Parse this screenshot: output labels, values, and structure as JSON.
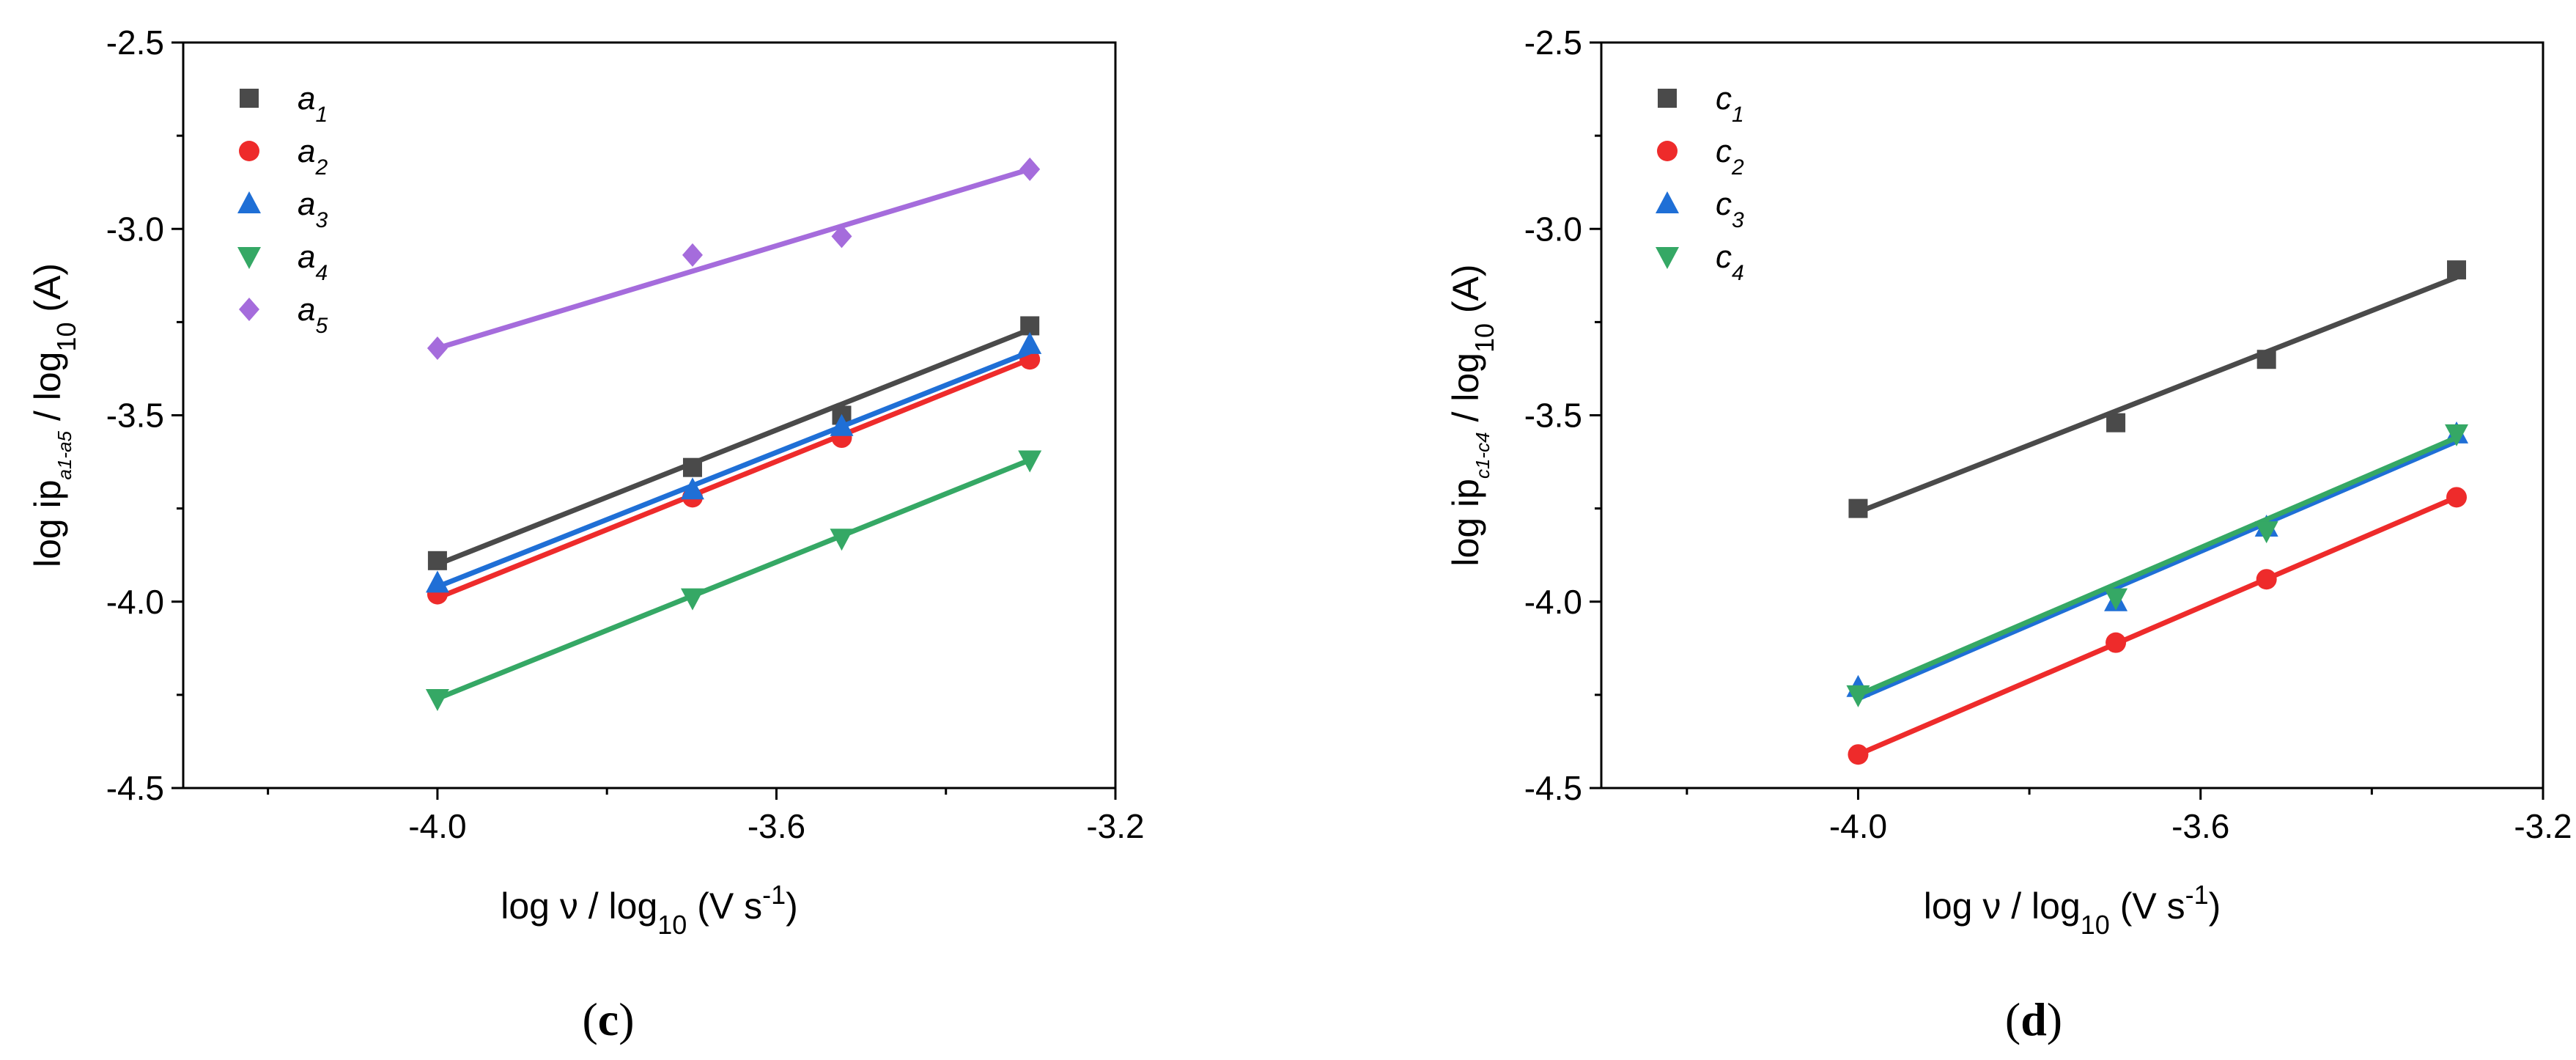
{
  "colors": {
    "s1": "#4a4a4a",
    "s2": "#ee2b2b",
    "s3": "#1f6fd6",
    "s4": "#35a865",
    "s5": "#a56cdc"
  },
  "chart_data": [
    {
      "panel": "c",
      "panel_label": {
        "open": "(",
        "letter": "c",
        "close": ")"
      },
      "type": "scatter",
      "xlim": [
        -4.3,
        -3.2
      ],
      "ylim": [
        -4.5,
        -2.5
      ],
      "xticks": [
        -4.0,
        -3.6,
        -3.2
      ],
      "xtick_labels": [
        "-4.0",
        "-3.6",
        "-3.2"
      ],
      "yticks": [
        -4.5,
        -4.0,
        -3.5,
        -3.0,
        -2.5
      ],
      "ytick_labels": [
        "-4.5",
        "-4.0",
        "-3.5",
        "-3.0",
        "-2.5"
      ],
      "xlabel": {
        "pre": "log ν / log",
        "sub": "10",
        "mid": " (V s",
        "sup": "-1",
        "post": ")"
      },
      "ylabel": {
        "pre": "log ip",
        "sub": "a1-a5",
        "post": " / log",
        "sub2": "10",
        "end": " (A)"
      },
      "legend_position": "top-left",
      "series": [
        {
          "name": "a",
          "sub": "1",
          "marker": "square",
          "color": "#4a4a4a",
          "x": [
            -4.0,
            -3.699,
            -3.523,
            -3.301
          ],
          "y": [
            -3.89,
            -3.64,
            -3.5,
            -3.26
          ],
          "fit": {
            "x": [
              -4.0,
              -3.301
            ],
            "y": [
              -3.9,
              -3.27
            ]
          }
        },
        {
          "name": "a",
          "sub": "2",
          "marker": "circle",
          "color": "#ee2b2b",
          "x": [
            -4.0,
            -3.699,
            -3.523,
            -3.301
          ],
          "y": [
            -3.98,
            -3.72,
            -3.56,
            -3.35
          ],
          "fit": {
            "x": [
              -4.0,
              -3.301
            ],
            "y": [
              -3.99,
              -3.35
            ]
          }
        },
        {
          "name": "a",
          "sub": "3",
          "marker": "triangle-up",
          "color": "#1f6fd6",
          "x": [
            -4.0,
            -3.699,
            -3.523,
            -3.301
          ],
          "y": [
            -3.95,
            -3.7,
            -3.53,
            -3.31
          ],
          "fit": {
            "x": [
              -4.0,
              -3.301
            ],
            "y": [
              -3.96,
              -3.33
            ]
          }
        },
        {
          "name": "a",
          "sub": "4",
          "marker": "triangle-down",
          "color": "#35a865",
          "x": [
            -4.0,
            -3.699,
            -3.523,
            -3.301
          ],
          "y": [
            -4.26,
            -3.99,
            -3.83,
            -3.62
          ],
          "fit": {
            "x": [
              -4.0,
              -3.301
            ],
            "y": [
              -4.26,
              -3.62
            ]
          }
        },
        {
          "name": "a",
          "sub": "5",
          "marker": "diamond",
          "color": "#a56cdc",
          "x": [
            -4.0,
            -3.699,
            -3.523,
            -3.301
          ],
          "y": [
            -3.32,
            -3.07,
            -3.02,
            -2.84
          ],
          "fit": {
            "x": [
              -4.0,
              -3.301
            ],
            "y": [
              -3.32,
              -2.84
            ]
          }
        }
      ]
    },
    {
      "panel": "d",
      "panel_label": {
        "open": "(",
        "letter": "d",
        "close": ")"
      },
      "type": "scatter",
      "xlim": [
        -4.3,
        -3.2
      ],
      "ylim": [
        -4.5,
        -2.5
      ],
      "xticks": [
        -4.0,
        -3.6,
        -3.2
      ],
      "xtick_labels": [
        "-4.0",
        "-3.6",
        "-3.2"
      ],
      "yticks": [
        -4.5,
        -4.0,
        -3.5,
        -3.0,
        -2.5
      ],
      "ytick_labels": [
        "-4.5",
        "-4.0",
        "-3.5",
        "-3.0",
        "-2.5"
      ],
      "xlabel": {
        "pre": "log ν / log",
        "sub": "10",
        "mid": " (V s",
        "sup": "-1",
        "post": ")"
      },
      "ylabel": {
        "pre": "log ip",
        "sub": "c1-c4",
        "post": " / log",
        "sub2": "10",
        "end": " (A)"
      },
      "legend_position": "top-left",
      "series": [
        {
          "name": "c",
          "sub": "1",
          "marker": "square",
          "color": "#4a4a4a",
          "x": [
            -4.0,
            -3.699,
            -3.523,
            -3.301
          ],
          "y": [
            -3.75,
            -3.52,
            -3.35,
            -3.11
          ],
          "fit": {
            "x": [
              -4.0,
              -3.301
            ],
            "y": [
              -3.76,
              -3.13
            ]
          }
        },
        {
          "name": "c",
          "sub": "2",
          "marker": "circle",
          "color": "#ee2b2b",
          "x": [
            -4.0,
            -3.699,
            -3.523,
            -3.301
          ],
          "y": [
            -4.41,
            -4.11,
            -3.94,
            -3.72
          ],
          "fit": {
            "x": [
              -4.0,
              -3.301
            ],
            "y": [
              -4.41,
              -3.72
            ]
          }
        },
        {
          "name": "c",
          "sub": "3",
          "marker": "triangle-up",
          "color": "#1f6fd6",
          "x": [
            -4.0,
            -3.699,
            -3.523,
            -3.301
          ],
          "y": [
            -4.23,
            -4.0,
            -3.8,
            -3.55
          ],
          "fit": {
            "x": [
              -4.0,
              -3.301
            ],
            "y": [
              -4.26,
              -3.57
            ]
          }
        },
        {
          "name": "c",
          "sub": "4",
          "marker": "triangle-down",
          "color": "#35a865",
          "x": [
            -4.0,
            -3.699,
            -3.523,
            -3.301
          ],
          "y": [
            -4.25,
            -3.99,
            -3.81,
            -3.55
          ],
          "fit": {
            "x": [
              -4.0,
              -3.301
            ],
            "y": [
              -4.25,
              -3.56
            ]
          }
        }
      ]
    }
  ]
}
